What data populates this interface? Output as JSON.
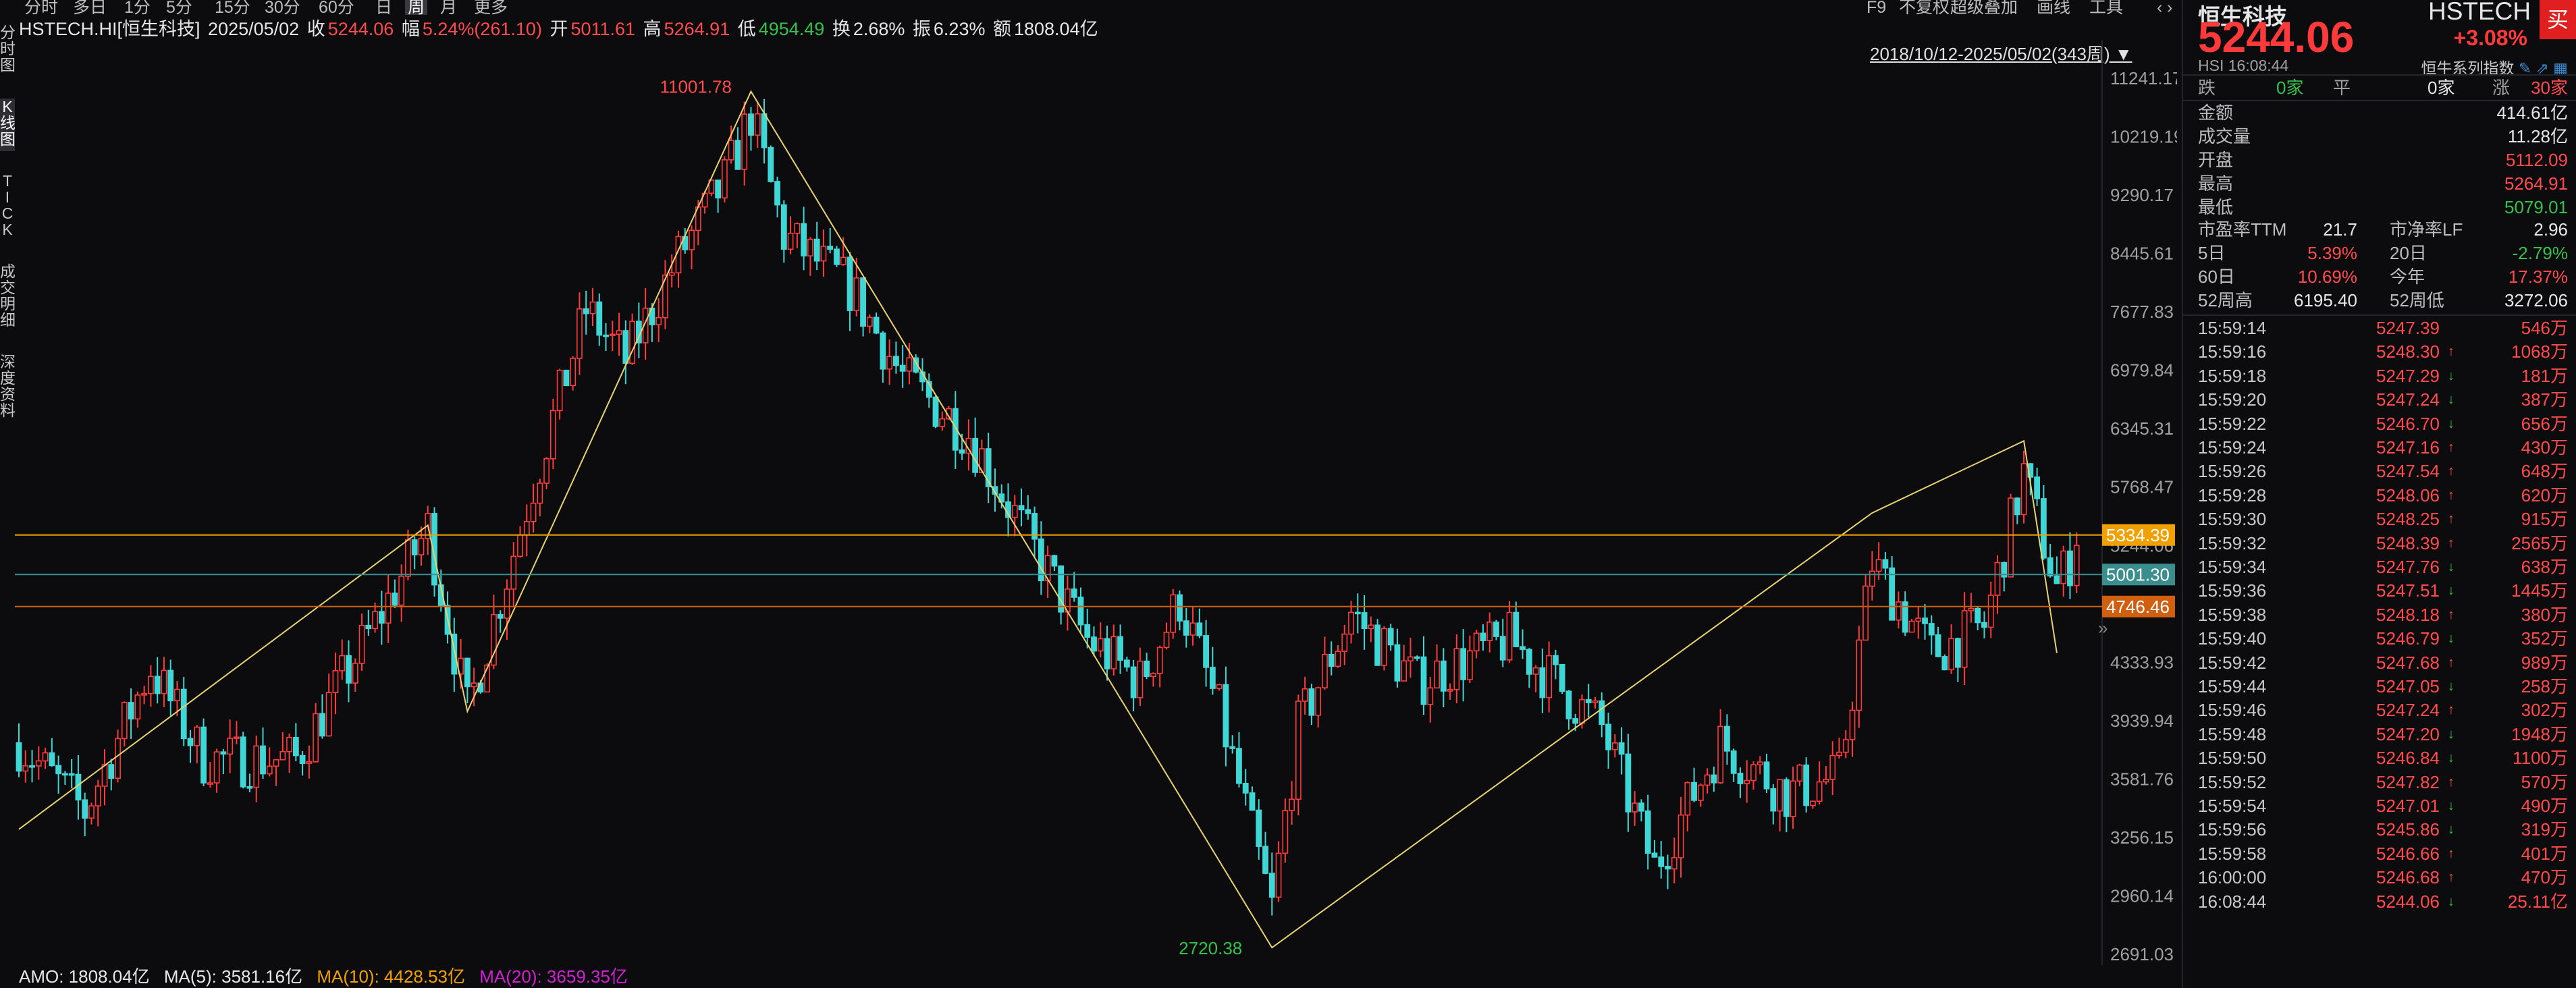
{
  "top_tabs": [
    "分时",
    "多日",
    "1分",
    "5分",
    "15分",
    "30分",
    "60分",
    "日",
    "周",
    "月",
    "更多"
  ],
  "active_tab": "周",
  "tools": [
    "F9",
    "不复权",
    "超级叠加",
    "画线",
    "工具"
  ],
  "info": {
    "symbol": "HSTECH.HI[恒生科技]",
    "date": "2025/05/02",
    "close_label": "收",
    "close": "5244.06",
    "range_label": "幅",
    "range": "5.24%(261.10)",
    "open_label": "开",
    "open": "5011.61",
    "high_label": "高",
    "high": "5264.91",
    "low_label": "低",
    "low": "4954.49",
    "turnover_label": "换",
    "turnover": "2.68%",
    "amp_label": "振",
    "amp": "6.23%",
    "amount_label": "额",
    "amount": "1808.04亿"
  },
  "left_nav": [
    "分时图",
    "K线图",
    "TICK",
    "成交明细",
    "深度资料"
  ],
  "left_nav_active": "K线图",
  "date_range": "2018/10/12-2025/05/02(343周)",
  "ma_bar": {
    "amo": "AMO: 1808.04亿",
    "ma5": "MA(5): 3581.16亿",
    "ma10": "MA(10): 4428.53亿",
    "ma20": "MA(20): 3659.35亿"
  },
  "colors": {
    "up": "#ff3b3b",
    "down": "#3fd6d6",
    "zigzag": "#e8d270",
    "ma10": "#f0a000",
    "ma20": "#d020d0",
    "accent": "#ff3a3a"
  },
  "chart_data": {
    "type": "candlestick",
    "y_ticks": [
      "11241.17",
      "10219.19",
      "9290.17",
      "8445.61",
      "7677.83",
      "6979.84",
      "6345.31",
      "5768.47",
      "5244.06",
      "4333.93",
      "3939.94",
      "3581.76",
      "3256.15",
      "2960.14",
      "2691.03"
    ],
    "ylim": [
      2691.03,
      11241.17
    ],
    "log_scale": true,
    "peak_label": "11001.78",
    "trough_label": "2720.38",
    "hlines": [
      {
        "label": "5334.39",
        "value": 5334.39,
        "color": "#f0a000"
      },
      {
        "label": "5001.30",
        "value": 5001.3,
        "color": "#3a8e8e"
      },
      {
        "label": "4746.46",
        "value": 4746.46,
        "color": "#d06010"
      }
    ],
    "zigzag": [
      {
        "week": 0,
        "value": 3300
      },
      {
        "week": 62,
        "value": 5420
      },
      {
        "week": 68,
        "value": 4000
      },
      {
        "week": 111,
        "value": 11001.78
      },
      {
        "week": 190,
        "value": 2720.38
      },
      {
        "week": 281,
        "value": 5530
      },
      {
        "week": 304,
        "value": 6220
      },
      {
        "week": 309,
        "value": 4400
      }
    ],
    "anchors": [
      {
        "week": 0,
        "value": 3800
      },
      {
        "week": 10,
        "value": 3400
      },
      {
        "week": 20,
        "value": 4300
      },
      {
        "week": 28,
        "value": 3700
      },
      {
        "week": 42,
        "value": 3700
      },
      {
        "week": 55,
        "value": 4700
      },
      {
        "week": 62,
        "value": 5400
      },
      {
        "week": 68,
        "value": 4000
      },
      {
        "week": 78,
        "value": 5800
      },
      {
        "week": 86,
        "value": 7700
      },
      {
        "week": 92,
        "value": 7100
      },
      {
        "week": 100,
        "value": 8400
      },
      {
        "week": 107,
        "value": 9500
      },
      {
        "week": 111,
        "value": 10600
      },
      {
        "week": 116,
        "value": 8700
      },
      {
        "week": 126,
        "value": 8000
      },
      {
        "week": 134,
        "value": 6900
      },
      {
        "week": 144,
        "value": 6300
      },
      {
        "week": 154,
        "value": 5200
      },
      {
        "week": 162,
        "value": 4500
      },
      {
        "week": 170,
        "value": 4200
      },
      {
        "week": 176,
        "value": 4800
      },
      {
        "week": 182,
        "value": 4000
      },
      {
        "week": 190,
        "value": 2900
      },
      {
        "week": 194,
        "value": 3900
      },
      {
        "week": 202,
        "value": 4700
      },
      {
        "week": 212,
        "value": 4200
      },
      {
        "week": 226,
        "value": 4500
      },
      {
        "week": 240,
        "value": 3900
      },
      {
        "week": 248,
        "value": 3100
      },
      {
        "week": 258,
        "value": 3800
      },
      {
        "week": 268,
        "value": 3500
      },
      {
        "week": 276,
        "value": 3600
      },
      {
        "week": 281,
        "value": 5100
      },
      {
        "week": 290,
        "value": 4400
      },
      {
        "week": 298,
        "value": 4600
      },
      {
        "week": 304,
        "value": 5900
      },
      {
        "week": 309,
        "value": 4900
      },
      {
        "week": 312,
        "value": 5244.06
      }
    ]
  },
  "panel": {
    "title": "恒生科技",
    "code": "HSTECH",
    "buy": "买",
    "price": "5244.06",
    "change_pct": "+3.08%",
    "sub": "HSI  16:08:44",
    "series": "恒牛系列指数",
    "breadth": {
      "down_label": "跌",
      "down": "0家",
      "flat_label": "平",
      "flat": "0家",
      "up_label": "涨",
      "up": "30家"
    },
    "stats": [
      {
        "k": "金额",
        "v": "414.61亿",
        "c": "white"
      },
      {
        "k": "成交量",
        "v": "11.28亿",
        "c": "white"
      },
      {
        "k": "开盘",
        "v": "5112.09",
        "c": "red"
      },
      {
        "k": "最高",
        "v": "5264.91",
        "c": "red"
      },
      {
        "k": "最低",
        "v": "5079.01",
        "c": "green"
      }
    ],
    "stats2": [
      {
        "k1": "市盈率TTM",
        "v1": "21.7",
        "c1": "white",
        "k2": "市净率LF",
        "v2": "2.96",
        "c2": "white"
      },
      {
        "k1": "5日",
        "v1": "5.39%",
        "c1": "red",
        "k2": "20日",
        "v2": "-2.79%",
        "c2": "green"
      },
      {
        "k1": "60日",
        "v1": "10.69%",
        "c1": "red",
        "k2": "今年",
        "v2": "17.37%",
        "c2": "red"
      },
      {
        "k1": "52周高",
        "v1": "6195.40",
        "c1": "white",
        "k2": "52周低",
        "v2": "3272.06",
        "c2": "white"
      }
    ],
    "ticks": [
      {
        "t": "15:59:14",
        "p": "5247.39",
        "d": "",
        "v": "546万"
      },
      {
        "t": "15:59:16",
        "p": "5248.30",
        "d": "up",
        "v": "1068万"
      },
      {
        "t": "15:59:18",
        "p": "5247.29",
        "d": "down",
        "v": "181万"
      },
      {
        "t": "15:59:20",
        "p": "5247.24",
        "d": "down",
        "v": "387万"
      },
      {
        "t": "15:59:22",
        "p": "5246.70",
        "d": "down",
        "v": "656万"
      },
      {
        "t": "15:59:24",
        "p": "5247.16",
        "d": "up",
        "v": "430万"
      },
      {
        "t": "15:59:26",
        "p": "5247.54",
        "d": "up",
        "v": "648万"
      },
      {
        "t": "15:59:28",
        "p": "5248.06",
        "d": "up",
        "v": "620万"
      },
      {
        "t": "15:59:30",
        "p": "5248.25",
        "d": "up",
        "v": "915万"
      },
      {
        "t": "15:59:32",
        "p": "5248.39",
        "d": "up",
        "v": "2565万"
      },
      {
        "t": "15:59:34",
        "p": "5247.76",
        "d": "down",
        "v": "638万"
      },
      {
        "t": "15:59:36",
        "p": "5247.51",
        "d": "down",
        "v": "1445万"
      },
      {
        "t": "15:59:38",
        "p": "5248.18",
        "d": "up",
        "v": "380万"
      },
      {
        "t": "15:59:40",
        "p": "5246.79",
        "d": "down",
        "v": "352万"
      },
      {
        "t": "15:59:42",
        "p": "5247.68",
        "d": "up",
        "v": "989万"
      },
      {
        "t": "15:59:44",
        "p": "5247.05",
        "d": "down",
        "v": "258万"
      },
      {
        "t": "15:59:46",
        "p": "5247.24",
        "d": "up",
        "v": "302万"
      },
      {
        "t": "15:59:48",
        "p": "5247.20",
        "d": "down",
        "v": "1948万"
      },
      {
        "t": "15:59:50",
        "p": "5246.84",
        "d": "down",
        "v": "1100万"
      },
      {
        "t": "15:59:52",
        "p": "5247.82",
        "d": "up",
        "v": "570万"
      },
      {
        "t": "15:59:54",
        "p": "5247.01",
        "d": "down",
        "v": "490万"
      },
      {
        "t": "15:59:56",
        "p": "5245.86",
        "d": "down",
        "v": "319万"
      },
      {
        "t": "15:59:58",
        "p": "5246.66",
        "d": "up",
        "v": "401万"
      },
      {
        "t": "16:00:00",
        "p": "5246.68",
        "d": "up",
        "v": "470万"
      },
      {
        "t": "16:08:44",
        "p": "5244.06",
        "d": "down",
        "v": "25.11亿"
      }
    ]
  }
}
